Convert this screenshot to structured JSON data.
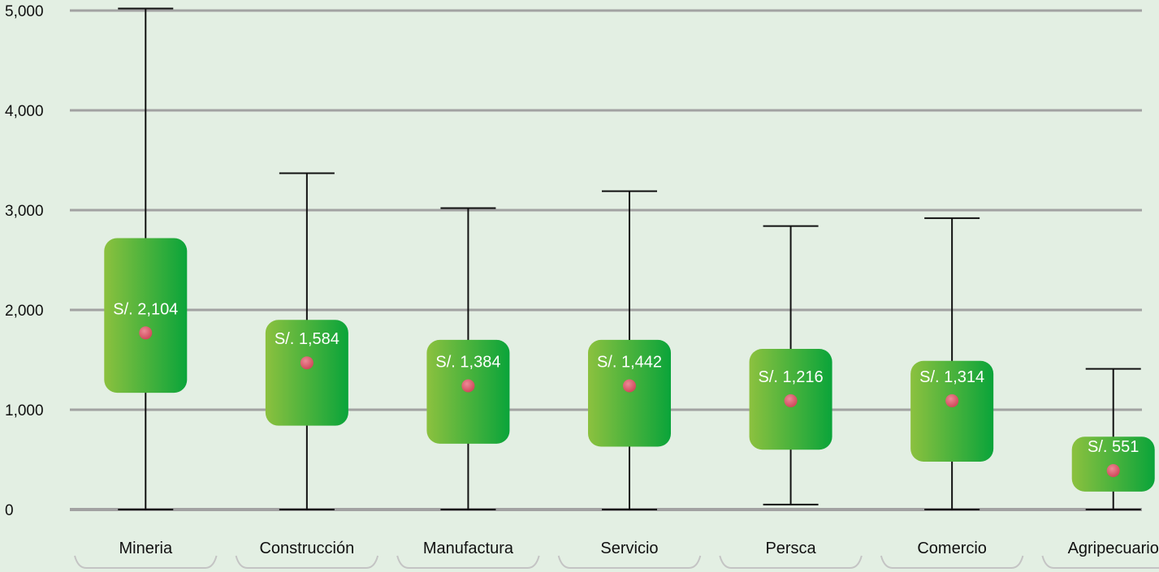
{
  "chart_data": {
    "type": "boxplot",
    "title": "",
    "xlabel": "",
    "ylabel": "",
    "ylim": [
      0,
      5000
    ],
    "y_ticks": [
      0,
      1000,
      2000,
      3000,
      4000,
      5000
    ],
    "y_tick_labels": [
      "0",
      "1,000",
      "2,000",
      "3,000",
      "4,000",
      "5,000"
    ],
    "grid": true,
    "categories": [
      "Mineria",
      "Construcción",
      "Manufactura",
      "Servicio",
      "Persca",
      "Comercio",
      "Agripecuario"
    ],
    "boxes": [
      {
        "category": "Mineria",
        "whisker_low": 0,
        "q1": 1170,
        "mean": 1770,
        "q3": 2720,
        "whisker_high": 5020,
        "label": "S/. 2,104"
      },
      {
        "category": "Construcción",
        "whisker_low": 0,
        "q1": 840,
        "mean": 1470,
        "q3": 1900,
        "whisker_high": 3370,
        "label": "S/. 1,584"
      },
      {
        "category": "Manufactura",
        "whisker_low": 0,
        "q1": 660,
        "mean": 1240,
        "q3": 1700,
        "whisker_high": 3020,
        "label": "S/. 1,384"
      },
      {
        "category": "Servicio",
        "whisker_low": 0,
        "q1": 630,
        "mean": 1240,
        "q3": 1700,
        "whisker_high": 3190,
        "label": "S/. 1,442"
      },
      {
        "category": "Persca",
        "whisker_low": 50,
        "q1": 600,
        "mean": 1090,
        "q3": 1610,
        "whisker_high": 2840,
        "label": "S/. 1,216"
      },
      {
        "category": "Comercio",
        "whisker_low": 0,
        "q1": 480,
        "mean": 1090,
        "q3": 1490,
        "whisker_high": 2920,
        "label": "S/. 1,314"
      },
      {
        "category": "Agripecuario",
        "whisker_low": 0,
        "q1": 180,
        "mean": 390,
        "q3": 730,
        "whisker_high": 1410,
        "label": "S/. 551"
      }
    ],
    "colors": {
      "background": "#e3efe3",
      "grid": "#a2a2a2",
      "box_light": "#8cc13f",
      "box_dark": "#0aa43a",
      "mean_marker": "#d1485b",
      "whisker": "#111111",
      "bracket": "#c4c4c4"
    }
  }
}
